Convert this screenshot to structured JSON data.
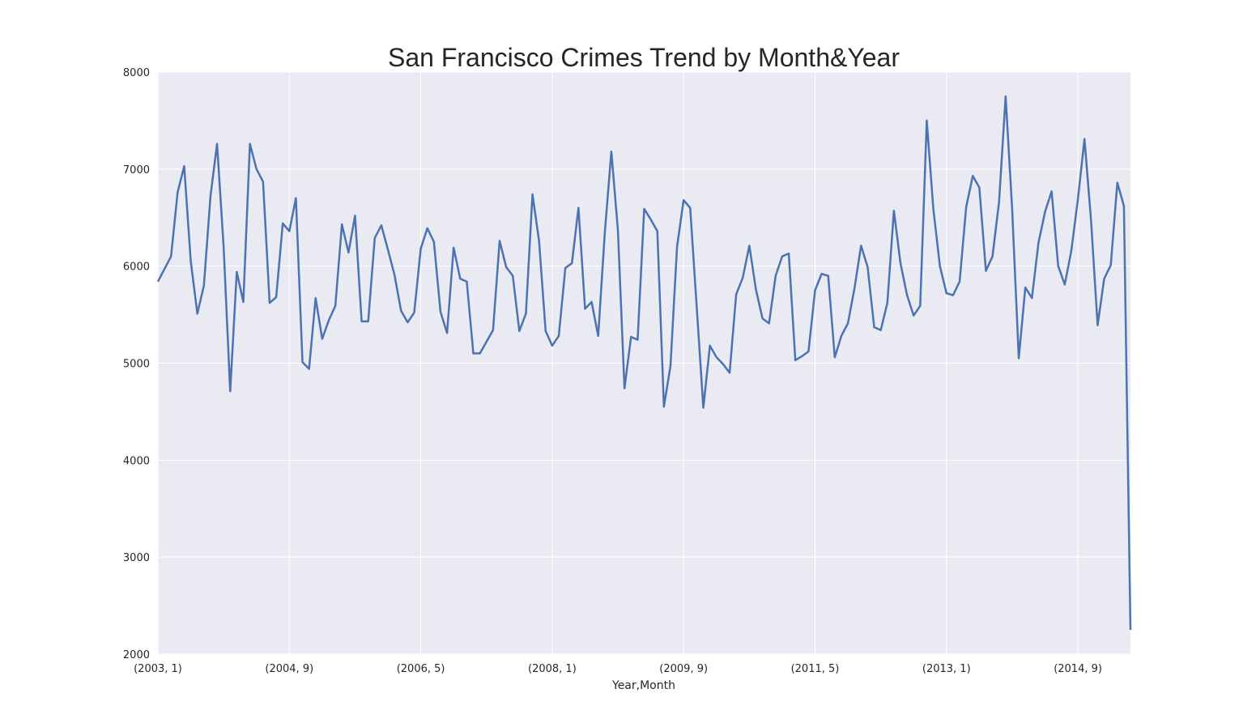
{
  "chart_data": {
    "type": "line",
    "title": "San Francisco Crimes Trend by Month&Year",
    "xlabel": "Year,Month",
    "ylabel": "",
    "ylim": [
      2000,
      8000
    ],
    "yticks": [
      "2000",
      "3000",
      "4000",
      "5000",
      "6000",
      "7000",
      "8000"
    ],
    "xticks": [
      {
        "label": "(2003, 1)",
        "index": 0
      },
      {
        "label": "(2004, 9)",
        "index": 20
      },
      {
        "label": "(2006, 5)",
        "index": 40
      },
      {
        "label": "(2008, 1)",
        "index": 60
      },
      {
        "label": "(2009, 9)",
        "index": 80
      },
      {
        "label": "(2011, 5)",
        "index": 100
      },
      {
        "label": "(2013, 1)",
        "index": 120
      },
      {
        "label": "(2014, 9)",
        "index": 140
      }
    ],
    "grid": true,
    "series": [
      {
        "color": "#4c72b0",
        "values": [
          5840,
          5970,
          6100,
          6760,
          7030,
          6050,
          5510,
          5800,
          6720,
          7260,
          6200,
          4710,
          5940,
          5630,
          7260,
          7000,
          6870,
          5620,
          5680,
          6440,
          6360,
          6700,
          5010,
          4940,
          5670,
          5250,
          5440,
          5590,
          6430,
          6140,
          6520,
          5430,
          5430,
          6290,
          6420,
          6170,
          5910,
          5540,
          5420,
          5520,
          6180,
          6390,
          6250,
          5530,
          5310,
          6190,
          5870,
          5840,
          5100,
          5100,
          5220,
          5340,
          6260,
          5990,
          5900,
          5330,
          5510,
          6740,
          6260,
          5330,
          5180,
          5280,
          5980,
          6030,
          6600,
          5560,
          5630,
          5280,
          6340,
          7180,
          6370,
          4740,
          5270,
          5240,
          6590,
          6480,
          6360,
          4550,
          4970,
          6200,
          6680,
          6600,
          5570,
          4540,
          5180,
          5060,
          4990,
          4900,
          5710,
          5880,
          6210,
          5760,
          5460,
          5410,
          5900,
          6100,
          6130,
          5030,
          5070,
          5120,
          5750,
          5920,
          5900,
          5060,
          5280,
          5410,
          5770,
          6210,
          5990,
          5370,
          5340,
          5620,
          6570,
          6030,
          5700,
          5490,
          5590,
          7500,
          6590,
          6000,
          5720,
          5700,
          5840,
          6610,
          6930,
          6810,
          5950,
          6100,
          6660,
          7750,
          6580,
          5050,
          5780,
          5670,
          6240,
          6560,
          6770,
          6000,
          5810,
          6160,
          6690,
          7310,
          6470,
          5390,
          5870,
          6010,
          6860,
          6620,
          2250
        ]
      }
    ]
  }
}
